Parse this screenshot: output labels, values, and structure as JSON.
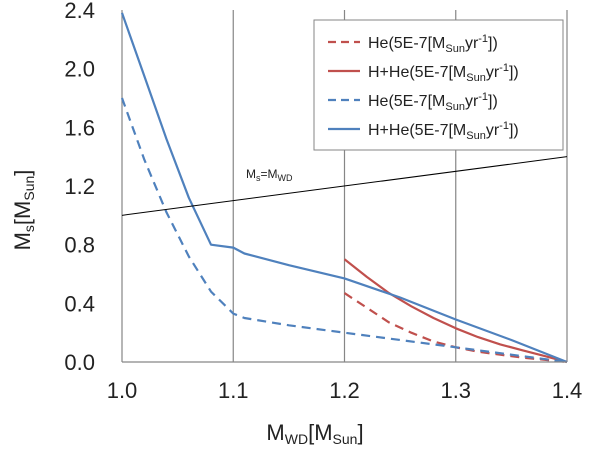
{
  "chart_data": {
    "type": "line",
    "xlabel": {
      "main": "M",
      "sub": "WD",
      "bracket_open": "[M",
      "bracket_sub": "Sun",
      "bracket_close": "]"
    },
    "ylabel": {
      "main": "M",
      "sub": "s",
      "bracket_open": "[M",
      "bracket_sub": "Sun",
      "bracket_close": "]"
    },
    "xlim": [
      1.0,
      1.4
    ],
    "ylim": [
      0.0,
      2.4
    ],
    "x_ticks": [
      1.0,
      1.1,
      1.2,
      1.3,
      1.4
    ],
    "x_tick_labels": [
      "1.0",
      "1.1",
      "1.2",
      "1.3",
      "1.4"
    ],
    "y_ticks": [
      0.0,
      0.4,
      0.8,
      1.2,
      1.6,
      2.0,
      2.4
    ],
    "y_tick_labels": [
      "0.0",
      "0.4",
      "0.8",
      "1.2",
      "1.6",
      "2.0",
      "2.4"
    ],
    "grid": {
      "vertical": true,
      "horizontal": false
    },
    "legend_position": "top-right",
    "series": [
      {
        "legend": {
          "prefix": "He(5E-7[M",
          "sub": "Sun",
          "mid": "yr",
          "sup": "-1",
          "suffix": "])"
        },
        "color": "#c0504d",
        "dashed": true,
        "x": [
          1.2,
          1.22,
          1.24,
          1.26,
          1.28,
          1.3,
          1.32,
          1.34,
          1.36,
          1.38,
          1.4
        ],
        "y": [
          0.47,
          0.37,
          0.27,
          0.2,
          0.14,
          0.1,
          0.07,
          0.05,
          0.03,
          0.015,
          0.0
        ]
      },
      {
        "legend": {
          "prefix": "H+He(5E-7[M",
          "sub": "Sun",
          "mid": "yr",
          "sup": "-1",
          "suffix": "])"
        },
        "color": "#c0504d",
        "dashed": false,
        "x": [
          1.2,
          1.22,
          1.24,
          1.26,
          1.28,
          1.3,
          1.32,
          1.34,
          1.36,
          1.38,
          1.4
        ],
        "y": [
          0.7,
          0.58,
          0.47,
          0.38,
          0.3,
          0.23,
          0.17,
          0.12,
          0.08,
          0.04,
          0.0
        ]
      },
      {
        "legend": {
          "prefix": "He(5E-7[M",
          "sub": "Sun",
          "mid": "yr",
          "sup": "-1",
          "suffix": "])"
        },
        "color": "#4f81bd",
        "dashed": true,
        "x": [
          1.0,
          1.02,
          1.04,
          1.06,
          1.08,
          1.1,
          1.11,
          1.15,
          1.2,
          1.25,
          1.3,
          1.35,
          1.4
        ],
        "y": [
          1.8,
          1.38,
          1.02,
          0.72,
          0.48,
          0.33,
          0.3,
          0.25,
          0.2,
          0.15,
          0.1,
          0.05,
          0.0
        ]
      },
      {
        "legend": {
          "prefix": "H+He(5E-7[M",
          "sub": "Sun",
          "mid": "yr",
          "sup": "-1",
          "suffix": "])"
        },
        "color": "#4f81bd",
        "dashed": false,
        "x": [
          1.0,
          1.02,
          1.04,
          1.06,
          1.08,
          1.1,
          1.11,
          1.15,
          1.2,
          1.25,
          1.3,
          1.35,
          1.4
        ],
        "y": [
          2.38,
          1.95,
          1.52,
          1.12,
          0.8,
          0.78,
          0.74,
          0.66,
          0.57,
          0.44,
          0.29,
          0.15,
          0.0
        ]
      }
    ],
    "reference_line": {
      "color": "#000000",
      "x": [
        1.0,
        1.4
      ],
      "y": [
        1.0,
        1.4
      ],
      "label": {
        "main": "M",
        "sub": "s",
        "mid": "=M",
        "sub2": "WD"
      }
    }
  }
}
